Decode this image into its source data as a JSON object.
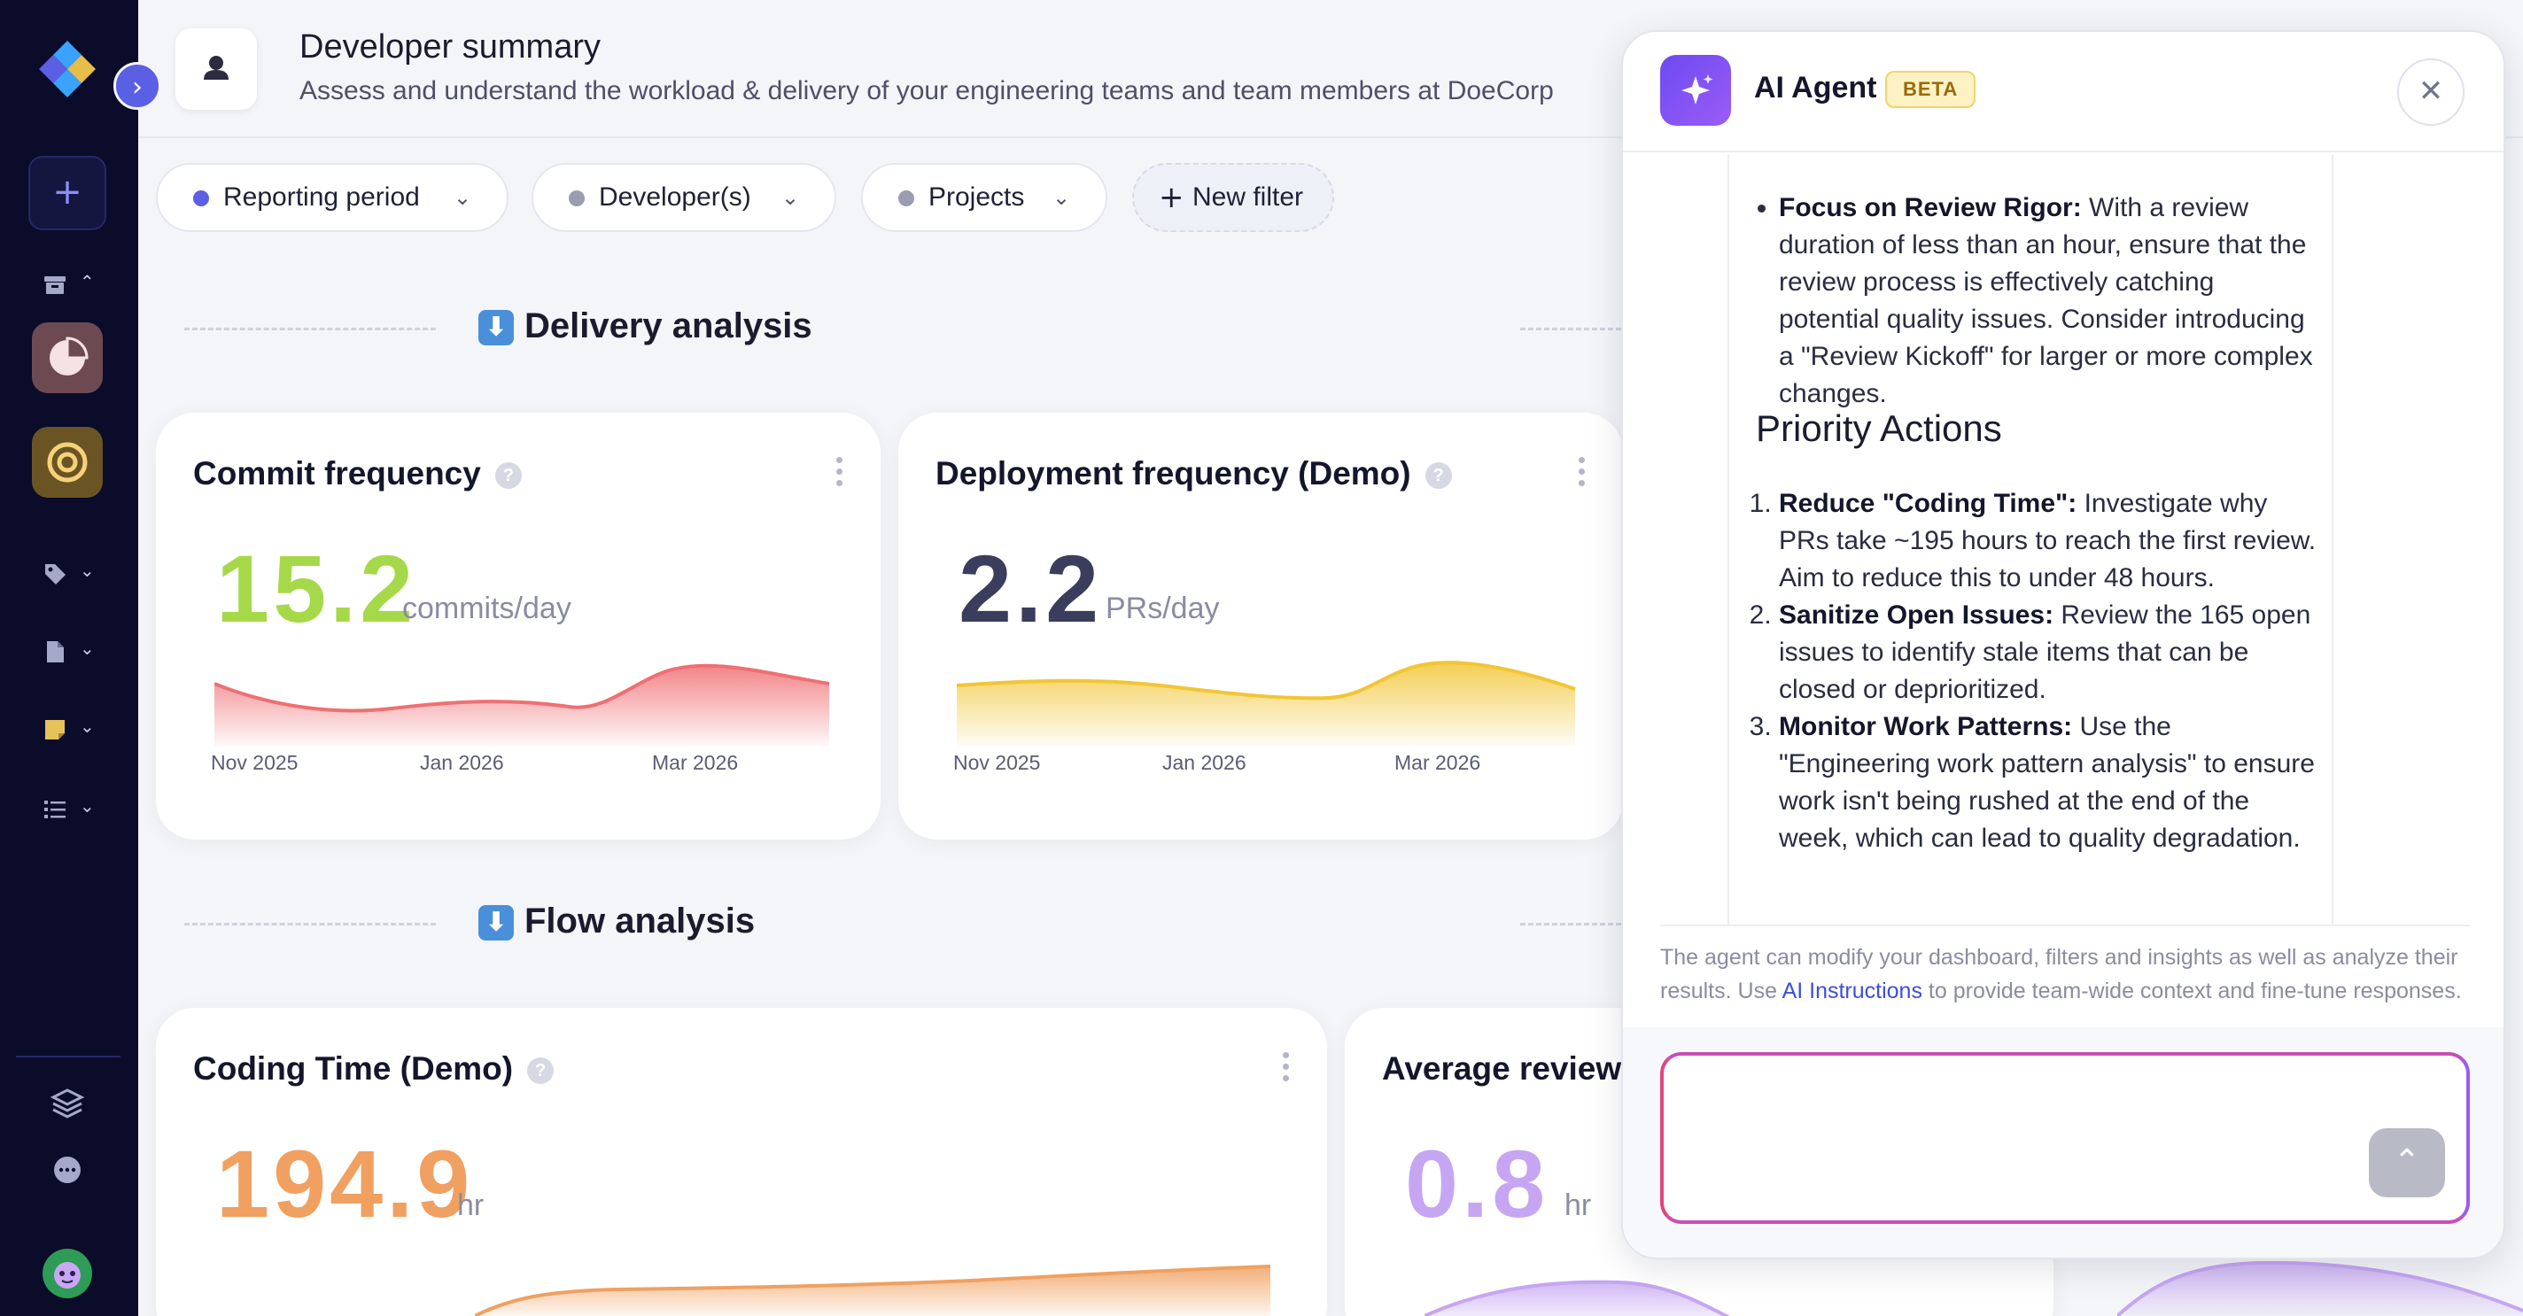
{
  "sidebar": {
    "expand_icon": "chevron-right-icon",
    "add_icon": "plus-icon",
    "items": [
      {
        "icon": "archive-icon"
      },
      {
        "icon": "pie-chart-icon"
      },
      {
        "icon": "target-icon"
      },
      {
        "icon": "tag-icon"
      },
      {
        "icon": "file-icon"
      },
      {
        "icon": "note-icon"
      },
      {
        "icon": "list-icon"
      }
    ],
    "bottom": [
      {
        "icon": "layers-icon"
      },
      {
        "icon": "chat-icon"
      }
    ]
  },
  "header": {
    "title": "Developer summary",
    "subtitle": "Assess and understand the workload & delivery of your engineering teams and team members at DoeCorp"
  },
  "filters": [
    {
      "label": "Reporting period",
      "dot_color": "#5b5fe3"
    },
    {
      "label": "Developer(s)",
      "dot_color": "#9a9cb0"
    },
    {
      "label": "Projects",
      "dot_color": "#9a9cb0"
    },
    {
      "label": "New filter"
    }
  ],
  "sections": {
    "delivery": "Delivery analysis",
    "flow": "Flow analysis"
  },
  "cards": {
    "commit": {
      "title": "Commit frequency",
      "value": "15.2",
      "unit": "commits/day",
      "color": "#a6d94a",
      "ticks": [
        "Nov 2025",
        "Jan 2026",
        "Mar 2026"
      ]
    },
    "deploy": {
      "title": "Deployment frequency (Demo)",
      "value": "2.2",
      "unit": "PRs/day",
      "color": "#3b3d5c",
      "ticks": [
        "Nov 2025",
        "Jan 2026",
        "Mar 2026"
      ]
    },
    "coding": {
      "title": "Coding Time (Demo)",
      "value": "194.9",
      "unit": "hr",
      "color": "#f0a060"
    },
    "review": {
      "title": "Average review",
      "value": "0.8",
      "unit": "hr",
      "color": "#c6a6f2"
    }
  },
  "agent": {
    "title": "AI Agent",
    "badge": "BETA",
    "partial_top": "·",
    "bullet": {
      "label": "Focus on Review Rigor:",
      "text": " With a review duration of less than an hour, ensure that the review process is effectively catching potential quality issues. Consider introducing a \"Review Kickoff\" for larger or more complex changes."
    },
    "heading": "Priority Actions",
    "actions": [
      {
        "label": "Reduce \"Coding Time\":",
        "text": " Investigate why PRs take ~195 hours to reach the first review. Aim to reduce this to under 48 hours."
      },
      {
        "label": "Sanitize Open Issues:",
        "text": " Review the 165 open issues to identify stale items that can be closed or deprioritized."
      },
      {
        "label": "Monitor Work Patterns:",
        "text": " Use the \"Engineering work pattern analysis\" to ensure work isn't being rushed at the end of the week, which can lead to quality degradation."
      }
    ],
    "note_before": "The agent can modify your dashboard, filters and insights as well as analyze their results. Use ",
    "note_link": "AI Instructions",
    "note_after": " to provide team-wide context and fine-tune responses.",
    "input_value": "",
    "send_icon": "chevron-up-icon"
  }
}
